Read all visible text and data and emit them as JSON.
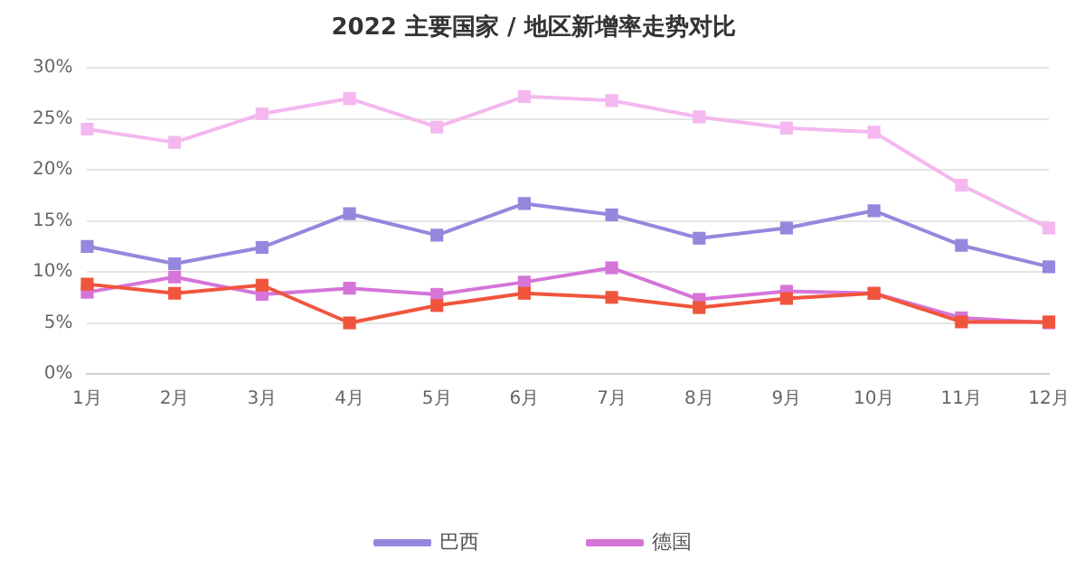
{
  "chart_data": {
    "type": "line",
    "title": "2022 主要国家 / 地区新增率走势对比",
    "categories": [
      "1月",
      "2月",
      "3月",
      "4月",
      "5月",
      "6月",
      "7月",
      "8月",
      "9月",
      "10月",
      "11月",
      "12月"
    ],
    "series": [
      {
        "name": "巴西",
        "color": "#9786dd",
        "values": [
          12.5,
          10.8,
          12.4,
          15.7,
          13.6,
          16.7,
          15.6,
          13.3,
          14.3,
          16,
          12.6,
          10.5
        ]
      },
      {
        "name": "德国",
        "color": "#d575d8",
        "values": [
          8,
          9.5,
          7.8,
          8.4,
          7.8,
          9,
          10.4,
          7.3,
          8.1,
          7.9,
          5.5,
          5
        ]
      },
      {
        "color": "#f4b8ef",
        "values": [
          24,
          22.7,
          25.5,
          27,
          24.2,
          27.2,
          26.8,
          25.2,
          24.1,
          23.7,
          18.5,
          14.3
        ]
      },
      {
        "color": "#f0553c",
        "values": [
          8.8,
          7.9,
          8.7,
          5,
          6.7,
          7.9,
          7.5,
          6.5,
          7.4,
          7.9,
          5.1,
          5.1
        ]
      }
    ],
    "ylim": [
      0,
      30
    ],
    "yticks": [
      {
        "value": 0,
        "label": "0%"
      },
      {
        "value": 5,
        "label": "5%"
      },
      {
        "value": 10,
        "label": "10%"
      },
      {
        "value": 15,
        "label": "15%"
      },
      {
        "value": 20,
        "label": "20%"
      },
      {
        "value": 25,
        "label": "25%"
      },
      {
        "value": 30,
        "label": "30%"
      }
    ],
    "grid": "y",
    "legend": "bottom",
    "marker": "square",
    "line_style": "solid"
  }
}
